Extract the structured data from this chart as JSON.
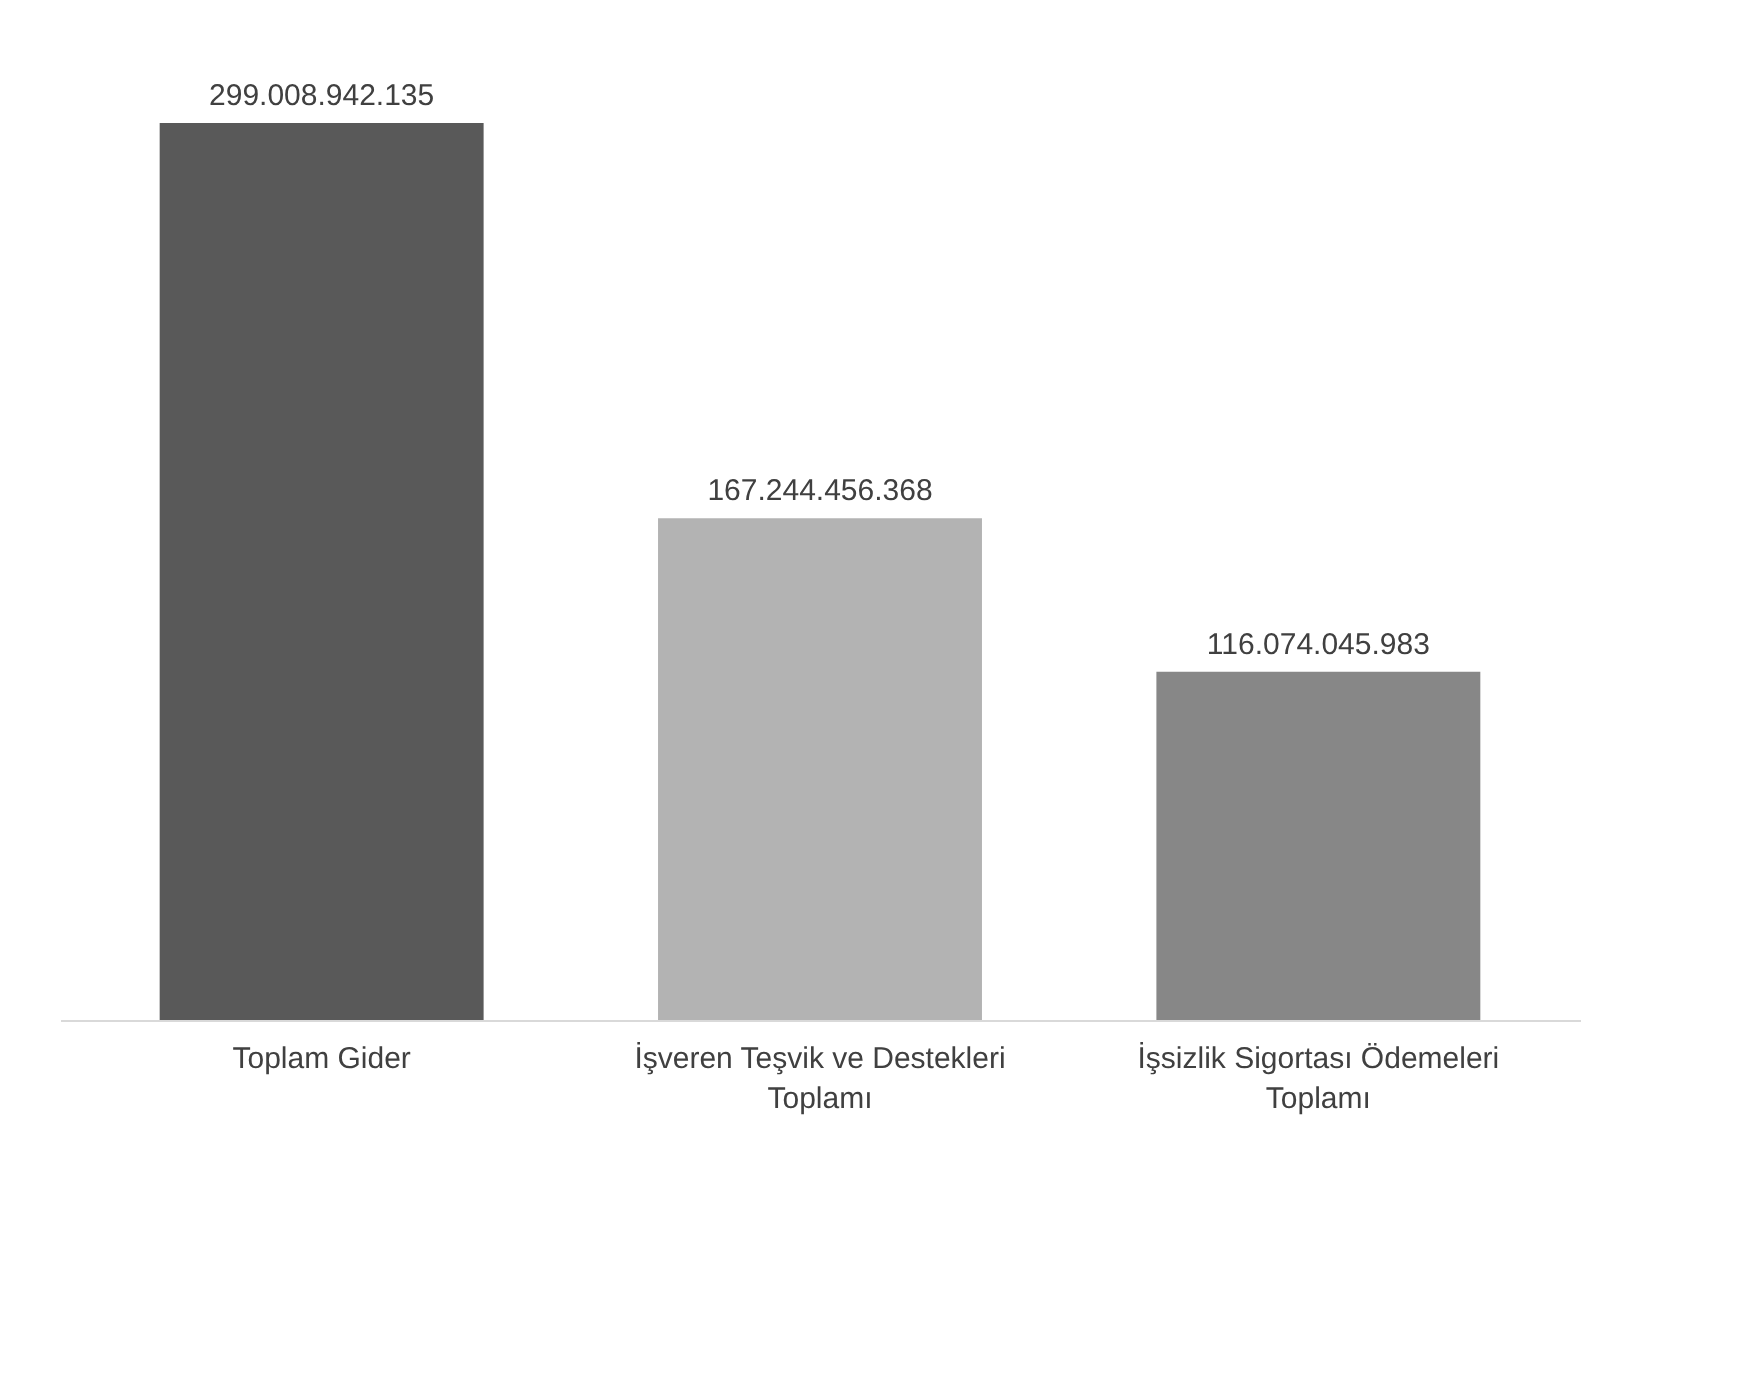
{
  "chart_data": {
    "type": "bar",
    "categories": [
      "Toplam Gider",
      "İşveren Teşvik ve Destekleri Toplamı",
      "İşsizlik Sigortası Ödemeleri Toplamı"
    ],
    "values": [
      299008942135,
      167244456368,
      116074045983
    ],
    "colors": [
      "#595959",
      "#b3b3b3",
      "#878787"
    ],
    "value_labels": [
      "299.008.942.135",
      "167.244.456.368",
      "116.074.045.983"
    ]
  }
}
